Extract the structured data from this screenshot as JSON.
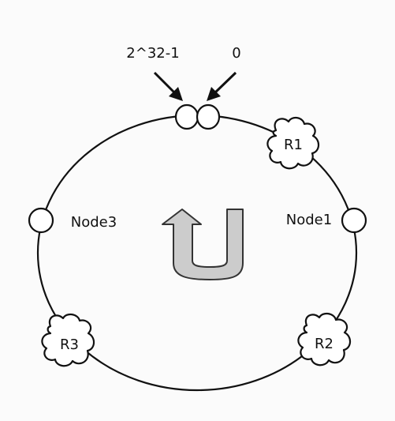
{
  "labels": {
    "max_hash": "2^32-1",
    "zero": "0"
  },
  "nodes": [
    {
      "id": "node1",
      "label": "Node1"
    },
    {
      "id": "node3",
      "label": "Node3"
    }
  ],
  "requests": [
    {
      "id": "r1",
      "label": "R1"
    },
    {
      "id": "r2",
      "label": "R2"
    },
    {
      "id": "r3",
      "label": "R3"
    }
  ],
  "colors": {
    "background": "#fbfbfb",
    "stroke": "#111111",
    "arrow_fill": "#cccccc"
  },
  "icons": {
    "direction_arrow": "u-turn-arrow-icon"
  }
}
